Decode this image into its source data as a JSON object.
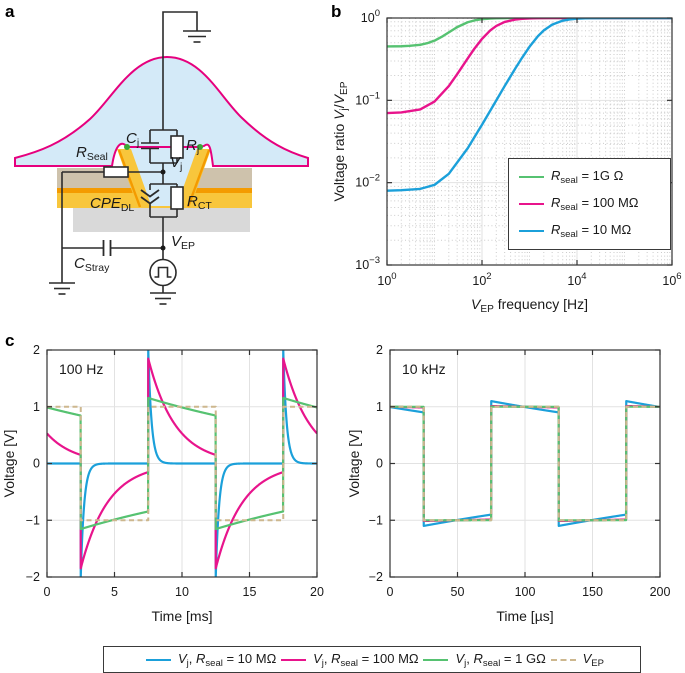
{
  "panels": {
    "a_label": "a",
    "b_label": "b",
    "c_label": "c"
  },
  "colors": {
    "blue": "#1ba0da",
    "magenta": "#e8148c",
    "green": "#56c271",
    "tan_dash": "#cdb78e",
    "membrane": "#e6007e",
    "cell_fill": "#d4eaf8",
    "tan_layer": "#cec2ac",
    "orange": "#f49b00",
    "gold": "#f8c63c",
    "gray": "#d9d9d9",
    "wire": "#2b2b2b",
    "grid": "#e2e2e2",
    "grid_minor": "#cbcbcb",
    "text": "#1a1a1a"
  },
  "panel_a": {
    "labels": {
      "rseal": {
        "main": "R",
        "sub": "Seal"
      },
      "cj": {
        "main": "C",
        "sub": "j"
      },
      "rj": {
        "main": "R",
        "sub": "j"
      },
      "vj": {
        "main": "V",
        "sub": "j"
      },
      "cpe": {
        "main": "CPE",
        "sub": "DL"
      },
      "rct": {
        "main": "R",
        "sub": "CT"
      },
      "cstray": {
        "main": "C",
        "sub": "Stray"
      },
      "vep": {
        "main": "V",
        "sub": "EP"
      }
    }
  },
  "chart_data": [
    {
      "id": "b",
      "type": "line",
      "x_scale": "log",
      "y_scale": "log",
      "xlim": [
        1,
        1000000
      ],
      "ylim": [
        0.001,
        1
      ],
      "x_ticks": [
        1,
        100,
        10000,
        1000000
      ],
      "x_tick_exps": [
        "0",
        "2",
        "4",
        "6"
      ],
      "y_ticks": [
        1,
        0.1,
        0.01,
        0.001
      ],
      "y_tick_exps": [
        "0",
        "-1",
        "-2",
        "-3"
      ],
      "grid": "major-solid-minor-dotted",
      "xlabel_parts": [
        {
          "t": "V",
          "style": "i"
        },
        {
          "t": "EP",
          "style": "sub"
        },
        {
          "t": " frequency [Hz]"
        }
      ],
      "ylabel_parts": [
        {
          "t": "Voltage ratio "
        },
        {
          "t": "V",
          "style": "i"
        },
        {
          "t": "j",
          "style": "sub"
        },
        {
          "t": "/"
        },
        {
          "t": "V",
          "style": "i"
        },
        {
          "t": "EP",
          "style": "sub"
        }
      ],
      "legend_position": "lower-right",
      "legend": [
        {
          "color": "#56c271",
          "parts": [
            {
              "t": "R",
              "style": "i"
            },
            {
              "t": "seal",
              "style": "sub"
            },
            {
              "t": " = 1G Ω"
            }
          ]
        },
        {
          "color": "#e8148c",
          "parts": [
            {
              "t": "R",
              "style": "i"
            },
            {
              "t": "seal",
              "style": "sub"
            },
            {
              "t": " = 100 MΩ"
            }
          ]
        },
        {
          "color": "#1ba0da",
          "parts": [
            {
              "t": "R",
              "style": "i"
            },
            {
              "t": "seal",
              "style": "sub"
            },
            {
              "t": " = 10 MΩ"
            }
          ]
        }
      ],
      "series": [
        {
          "id": "rseal-1g",
          "name": "Rseal = 1G Ohm",
          "color": "#56c271",
          "points": [
            [
              1,
              0.451
            ],
            [
              2,
              0.454
            ],
            [
              3,
              0.459
            ],
            [
              5,
              0.473
            ],
            [
              7,
              0.494
            ],
            [
              10,
              0.531
            ],
            [
              15,
              0.602
            ],
            [
              20,
              0.669
            ],
            [
              30,
              0.775
            ],
            [
              50,
              0.888
            ],
            [
              70,
              0.936
            ],
            [
              100,
              0.966
            ],
            [
              150,
              0.985
            ],
            [
              200,
              0.991
            ],
            [
              300,
              0.996
            ],
            [
              500,
              0.998
            ],
            [
              1000,
              0.9995
            ],
            [
              3000,
              1
            ],
            [
              10000,
              1
            ],
            [
              100000,
              1
            ],
            [
              1000000,
              1
            ]
          ]
        },
        {
          "id": "rseal-100m",
          "name": "Rseal = 100 MOhm",
          "color": "#e8148c",
          "points": [
            [
              1,
              0.0701
            ],
            [
              2,
              0.0713
            ],
            [
              5,
              0.0775
            ],
            [
              10,
              0.0965
            ],
            [
              20,
              0.149
            ],
            [
              30,
              0.208
            ],
            [
              50,
              0.323
            ],
            [
              70,
              0.428
            ],
            [
              100,
              0.558
            ],
            [
              150,
              0.709
            ],
            [
              200,
              0.801
            ],
            [
              300,
              0.895
            ],
            [
              500,
              0.958
            ],
            [
              700,
              0.978
            ],
            [
              1000,
              0.989
            ],
            [
              1500,
              0.995
            ],
            [
              3000,
              0.9988
            ],
            [
              10000,
              1
            ],
            [
              100000,
              1
            ],
            [
              1000000,
              1
            ]
          ]
        },
        {
          "id": "rseal-10m",
          "name": "Rseal = 10 MOhm",
          "color": "#1ba0da",
          "points": [
            [
              1,
              0.008
            ],
            [
              2,
              0.0081
            ],
            [
              5,
              0.0084
            ],
            [
              10,
              0.0094
            ],
            [
              20,
              0.0128
            ],
            [
              50,
              0.0262
            ],
            [
              100,
              0.0506
            ],
            [
              200,
              0.0998
            ],
            [
              300,
              0.149
            ],
            [
              500,
              0.243
            ],
            [
              700,
              0.33
            ],
            [
              1000,
              0.447
            ],
            [
              1500,
              0.6
            ],
            [
              2000,
              0.707
            ],
            [
              3000,
              0.832
            ],
            [
              5000,
              0.928
            ],
            [
              7000,
              0.962
            ],
            [
              10000,
              0.981
            ],
            [
              15000,
              0.991
            ],
            [
              20000,
              0.995
            ],
            [
              50000,
              0.999
            ],
            [
              100000,
              1
            ],
            [
              1000000,
              1
            ]
          ]
        }
      ]
    },
    {
      "id": "c1",
      "type": "line",
      "x_scale": "linear",
      "y_scale": "linear",
      "title": "100 Hz",
      "xlim": [
        0,
        20
      ],
      "ylim": [
        -2,
        2
      ],
      "x_ticks": [
        0,
        5,
        10,
        15,
        20
      ],
      "y_ticks": [
        -2,
        -1,
        0,
        1,
        2
      ],
      "xlabel_parts": [
        {
          "t": "Time [ms]"
        }
      ],
      "ylabel_parts": [
        {
          "t": "Voltage [V]"
        }
      ],
      "square": {
        "amplitude": 1,
        "first_transition": 2.5,
        "half_period": 5,
        "start_sign": 1,
        "unit": "ms"
      },
      "series": [
        {
          "id": "vj-10m",
          "name": "Vj, Rseal = 10 MOhm",
          "color": "#1ba0da",
          "kind": "exp",
          "tau": 0.25,
          "peak_v": 2.0,
          "settle_v": 0.0
        },
        {
          "id": "vj-100m",
          "name": "Vj, Rseal = 100 MOhm",
          "color": "#e8148c",
          "kind": "exp",
          "tau": 2,
          "peak_v": 1.85,
          "settle_v": 0.15
        },
        {
          "id": "vj-1g",
          "name": "Vj, Rseal = 1 GOhm",
          "color": "#56c271",
          "kind": "exp",
          "tau": 16,
          "peak_v": 1.15,
          "settle_v": 0.85
        },
        {
          "id": "vep",
          "name": "VEP",
          "color": "#cdb78e",
          "kind": "square",
          "dash": true,
          "peak_v": 1.0,
          "settle_v": 1.0
        }
      ]
    },
    {
      "id": "c2",
      "type": "line",
      "x_scale": "linear",
      "y_scale": "linear",
      "title": "10 kHz",
      "xlim": [
        0,
        200
      ],
      "ylim": [
        -2,
        2
      ],
      "x_ticks": [
        0,
        50,
        100,
        150,
        200
      ],
      "y_ticks": [
        -2,
        -1,
        0,
        1,
        2
      ],
      "xlabel_parts": [
        {
          "t": "Time [µs]"
        }
      ],
      "ylabel_parts": [
        {
          "t": "Voltage [V]"
        }
      ],
      "square": {
        "amplitude": 1,
        "first_transition": 25,
        "half_period": 50,
        "start_sign": 1,
        "unit": "µs"
      },
      "series": [
        {
          "id": "vj-10m",
          "name": "Vj, Rseal = 10 MOhm",
          "color": "#1ba0da",
          "kind": "exp",
          "tau": 250,
          "peak_v": 1.1,
          "settle_v": 0.9
        },
        {
          "id": "vj-100m",
          "name": "Vj, Rseal = 100 MOhm",
          "color": "#e8148c",
          "kind": "exp",
          "tau": 2000,
          "peak_v": 1.01,
          "settle_v": 0.99
        },
        {
          "id": "vj-1g",
          "name": "Vj, Rseal = 1 GOhm",
          "color": "#56c271",
          "kind": "exp",
          "tau": 16000,
          "peak_v": 1.0,
          "settle_v": 1.0
        },
        {
          "id": "vep",
          "name": "VEP",
          "color": "#cdb78e",
          "kind": "square",
          "dash": true,
          "peak_v": 1.0,
          "settle_v": 1.0
        }
      ]
    }
  ],
  "legend_bottom": {
    "items": [
      {
        "color": "#1ba0da",
        "dash": false,
        "parts": [
          {
            "t": "V",
            "style": "i"
          },
          {
            "t": "j",
            "style": "sub"
          },
          {
            "t": ", "
          },
          {
            "t": "R",
            "style": "i"
          },
          {
            "t": "seal",
            "style": "sub"
          },
          {
            "t": " = 10 MΩ"
          }
        ]
      },
      {
        "color": "#e8148c",
        "dash": false,
        "parts": [
          {
            "t": "V",
            "style": "i"
          },
          {
            "t": "j",
            "style": "sub"
          },
          {
            "t": ", "
          },
          {
            "t": "R",
            "style": "i"
          },
          {
            "t": "seal",
            "style": "sub"
          },
          {
            "t": " = 100 MΩ"
          }
        ]
      },
      {
        "color": "#56c271",
        "dash": false,
        "parts": [
          {
            "t": "V",
            "style": "i"
          },
          {
            "t": "j",
            "style": "sub"
          },
          {
            "t": ", "
          },
          {
            "t": "R",
            "style": "i"
          },
          {
            "t": "seal",
            "style": "sub"
          },
          {
            "t": " = 1 GΩ"
          }
        ]
      },
      {
        "color": "#cdb78e",
        "dash": true,
        "parts": [
          {
            "t": "V",
            "style": "i"
          },
          {
            "t": "EP",
            "style": "sub"
          }
        ]
      }
    ]
  }
}
